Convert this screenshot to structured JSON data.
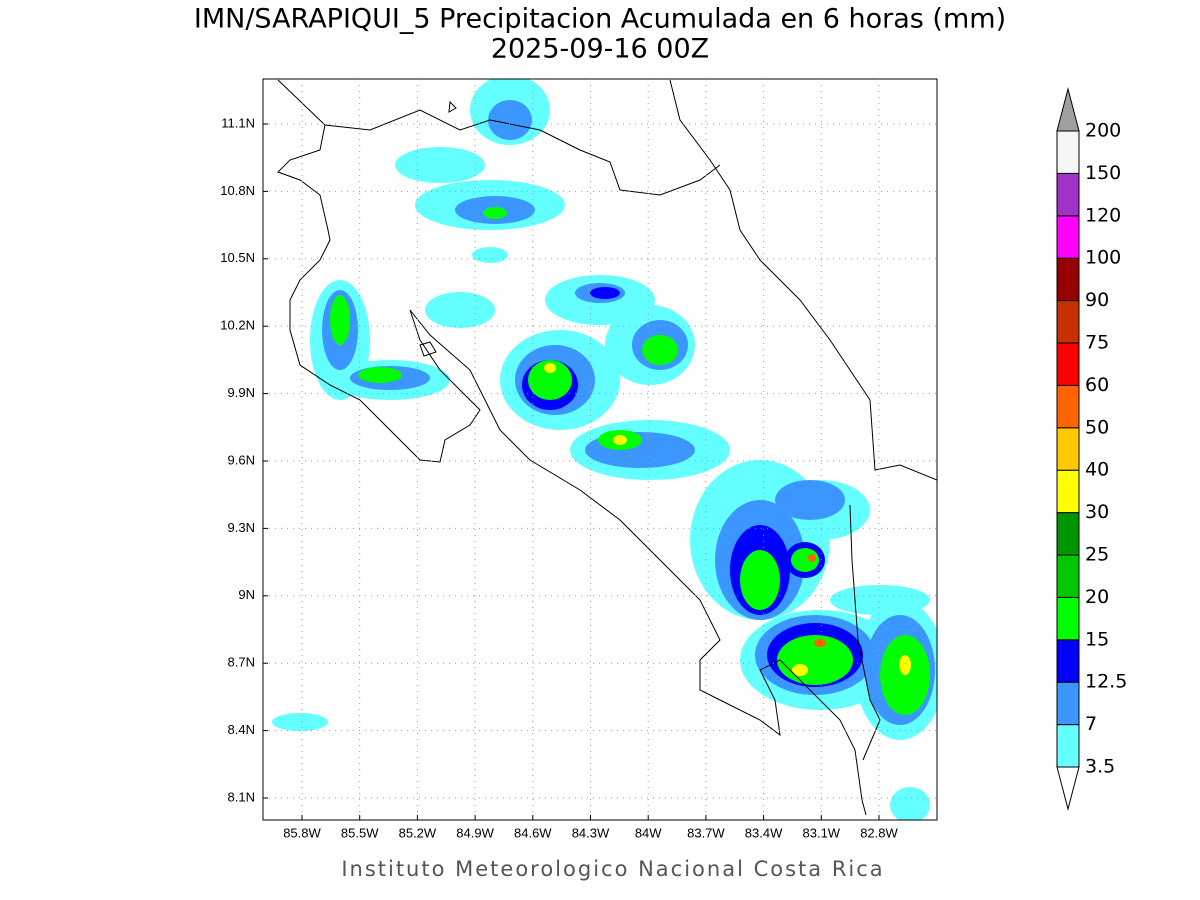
{
  "title": "IMN/SARAPIQUI_5 Precipitacion Acumulada en 6 horas (mm)",
  "subtitle": "2025-09-16 00Z",
  "map": {
    "lat_labels": [
      "11.1N",
      "10.8N",
      "10.5N",
      "10.2N",
      "9.9N",
      "9.6N",
      "9.3N",
      "9N",
      "8.7N",
      "8.4N",
      "8.1N"
    ],
    "lon_labels": [
      "85.8W",
      "85.5W",
      "85.2W",
      "84.9W",
      "84.6W",
      "84.3W",
      "84W",
      "83.7W",
      "83.4W",
      "83.1W",
      "82.8W"
    ]
  },
  "colorbar": {
    "levels": [
      "3.5",
      "7",
      "12.5",
      "15",
      "20",
      "25",
      "30",
      "40",
      "50",
      "60",
      "75",
      "90",
      "100",
      "120",
      "150",
      "200"
    ],
    "colors": [
      "#ffffff",
      "#64ffff",
      "#3c96ff",
      "#0000ff",
      "#00ff00",
      "#00c800",
      "#009600",
      "#ffff00",
      "#ffc800",
      "#ff6400",
      "#ff0000",
      "#c83200",
      "#960000",
      "#ff00ff",
      "#a032c8",
      "#f5f5f5",
      "#a0a0a0"
    ]
  },
  "footer": "Instituto Meteorologico Nacional Costa Rica"
}
